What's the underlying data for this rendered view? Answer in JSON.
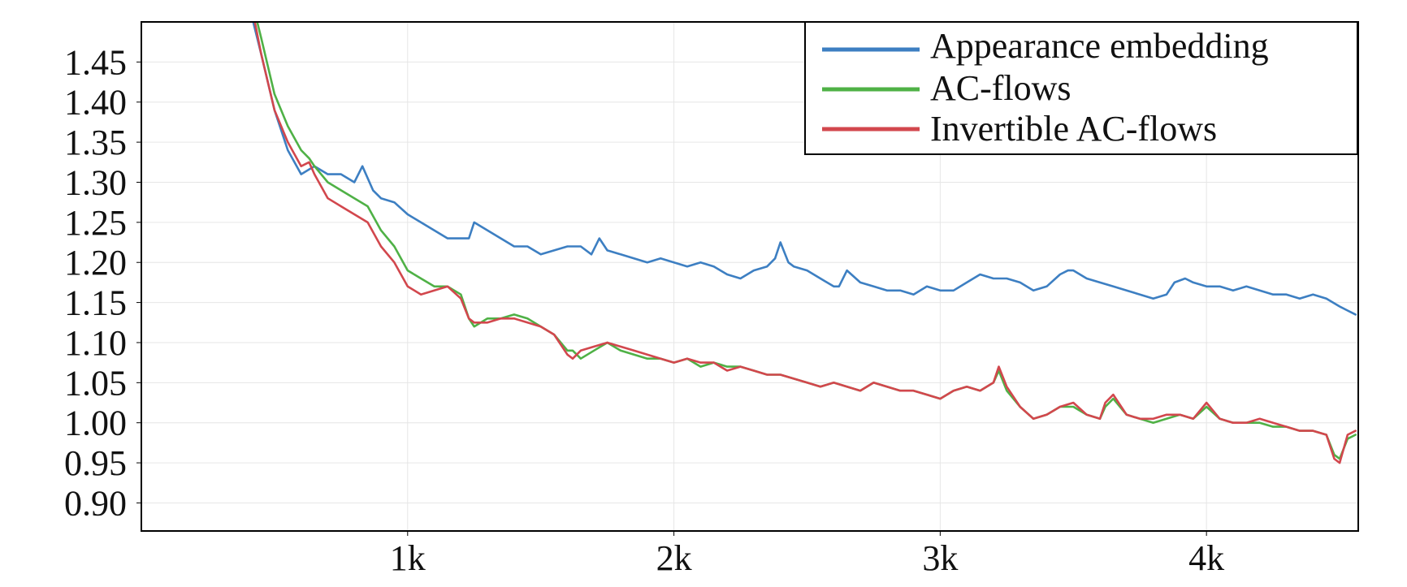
{
  "chart_data": {
    "type": "line",
    "title": "",
    "xlabel": "",
    "ylabel": "",
    "xlim": [
      0,
      4570
    ],
    "ylim": [
      0.865,
      1.5
    ],
    "grid": true,
    "legend_position": "top-right",
    "x_ticks": [
      {
        "value": 1000,
        "label": "1k"
      },
      {
        "value": 2000,
        "label": "2k"
      },
      {
        "value": 3000,
        "label": "3k"
      },
      {
        "value": 4000,
        "label": "4k"
      }
    ],
    "y_ticks": [
      {
        "value": 0.9,
        "label": "0.90"
      },
      {
        "value": 0.95,
        "label": "0.95"
      },
      {
        "value": 1.0,
        "label": "1.00"
      },
      {
        "value": 1.05,
        "label": "1.05"
      },
      {
        "value": 1.1,
        "label": "1.10"
      },
      {
        "value": 1.15,
        "label": "1.15"
      },
      {
        "value": 1.2,
        "label": "1.20"
      },
      {
        "value": 1.25,
        "label": "1.25"
      },
      {
        "value": 1.3,
        "label": "1.30"
      },
      {
        "value": 1.35,
        "label": "1.35"
      },
      {
        "value": 1.4,
        "label": "1.40"
      },
      {
        "value": 1.45,
        "label": "1.45"
      }
    ],
    "series": [
      {
        "name": "Appearance embedding",
        "color": "#3d7fc2",
        "x": [
          420,
          450,
          500,
          550,
          600,
          650,
          700,
          750,
          800,
          830,
          870,
          900,
          950,
          1000,
          1050,
          1100,
          1150,
          1200,
          1230,
          1250,
          1300,
          1350,
          1400,
          1450,
          1500,
          1550,
          1600,
          1650,
          1690,
          1720,
          1750,
          1800,
          1850,
          1900,
          1950,
          2000,
          2050,
          2100,
          2150,
          2200,
          2250,
          2300,
          2350,
          2380,
          2400,
          2430,
          2450,
          2500,
          2550,
          2600,
          2620,
          2650,
          2700,
          2750,
          2800,
          2850,
          2900,
          2950,
          3000,
          3050,
          3100,
          3150,
          3200,
          3250,
          3300,
          3350,
          3400,
          3450,
          3480,
          3500,
          3550,
          3600,
          3650,
          3700,
          3750,
          3800,
          3850,
          3880,
          3920,
          3950,
          4000,
          4050,
          4100,
          4150,
          4200,
          4250,
          4300,
          4350,
          4400,
          4450,
          4500,
          4530,
          4560
        ],
        "y": [
          1.5,
          1.46,
          1.39,
          1.34,
          1.31,
          1.32,
          1.31,
          1.31,
          1.3,
          1.32,
          1.29,
          1.28,
          1.275,
          1.26,
          1.25,
          1.24,
          1.23,
          1.23,
          1.23,
          1.25,
          1.24,
          1.23,
          1.22,
          1.22,
          1.21,
          1.215,
          1.22,
          1.22,
          1.21,
          1.23,
          1.215,
          1.21,
          1.205,
          1.2,
          1.205,
          1.2,
          1.195,
          1.2,
          1.195,
          1.185,
          1.18,
          1.19,
          1.195,
          1.205,
          1.225,
          1.2,
          1.195,
          1.19,
          1.18,
          1.17,
          1.17,
          1.19,
          1.175,
          1.17,
          1.165,
          1.165,
          1.16,
          1.17,
          1.165,
          1.165,
          1.175,
          1.185,
          1.18,
          1.18,
          1.175,
          1.165,
          1.17,
          1.185,
          1.19,
          1.19,
          1.18,
          1.175,
          1.17,
          1.165,
          1.16,
          1.155,
          1.16,
          1.175,
          1.18,
          1.175,
          1.17,
          1.17,
          1.165,
          1.17,
          1.165,
          1.16,
          1.16,
          1.155,
          1.16,
          1.155,
          1.145,
          1.14,
          1.135
        ]
      },
      {
        "name": "AC-flows",
        "color": "#4fb146",
        "x": [
          420,
          450,
          500,
          550,
          600,
          630,
          650,
          700,
          750,
          800,
          850,
          900,
          950,
          1000,
          1050,
          1100,
          1150,
          1200,
          1230,
          1250,
          1300,
          1350,
          1400,
          1450,
          1500,
          1550,
          1600,
          1620,
          1650,
          1700,
          1750,
          1800,
          1850,
          1900,
          1950,
          2000,
          2050,
          2100,
          2150,
          2200,
          2250,
          2300,
          2350,
          2400,
          2450,
          2500,
          2550,
          2600,
          2650,
          2700,
          2750,
          2800,
          2850,
          2900,
          2950,
          3000,
          3050,
          3100,
          3150,
          3200,
          3220,
          3250,
          3300,
          3350,
          3400,
          3450,
          3500,
          3550,
          3600,
          3620,
          3650,
          3700,
          3750,
          3800,
          3850,
          3900,
          3950,
          4000,
          4050,
          4100,
          4150,
          4200,
          4250,
          4300,
          4350,
          4400,
          4450,
          4480,
          4500,
          4530,
          4560
        ],
        "y": [
          1.52,
          1.48,
          1.41,
          1.37,
          1.34,
          1.33,
          1.32,
          1.3,
          1.29,
          1.28,
          1.27,
          1.24,
          1.22,
          1.19,
          1.18,
          1.17,
          1.17,
          1.16,
          1.13,
          1.12,
          1.13,
          1.13,
          1.135,
          1.13,
          1.12,
          1.11,
          1.09,
          1.09,
          1.08,
          1.09,
          1.1,
          1.09,
          1.085,
          1.08,
          1.08,
          1.075,
          1.08,
          1.07,
          1.075,
          1.07,
          1.07,
          1.065,
          1.06,
          1.06,
          1.055,
          1.05,
          1.045,
          1.05,
          1.045,
          1.04,
          1.05,
          1.045,
          1.04,
          1.04,
          1.035,
          1.03,
          1.04,
          1.045,
          1.04,
          1.05,
          1.065,
          1.04,
          1.02,
          1.005,
          1.01,
          1.02,
          1.02,
          1.01,
          1.005,
          1.02,
          1.03,
          1.01,
          1.005,
          1.0,
          1.005,
          1.01,
          1.005,
          1.02,
          1.005,
          1.0,
          1.0,
          1.0,
          0.995,
          0.995,
          0.99,
          0.99,
          0.985,
          0.96,
          0.955,
          0.98,
          0.985
        ]
      },
      {
        "name": "Invertible AC-flows",
        "color": "#d2474d",
        "x": [
          420,
          450,
          500,
          550,
          600,
          630,
          650,
          700,
          750,
          800,
          850,
          900,
          950,
          1000,
          1050,
          1100,
          1150,
          1200,
          1230,
          1250,
          1300,
          1350,
          1400,
          1450,
          1500,
          1550,
          1600,
          1620,
          1650,
          1700,
          1750,
          1800,
          1850,
          1900,
          1950,
          2000,
          2050,
          2100,
          2150,
          2200,
          2250,
          2300,
          2350,
          2400,
          2450,
          2500,
          2550,
          2600,
          2650,
          2700,
          2750,
          2800,
          2850,
          2900,
          2950,
          3000,
          3050,
          3100,
          3150,
          3200,
          3220,
          3250,
          3300,
          3350,
          3400,
          3450,
          3500,
          3550,
          3600,
          3620,
          3650,
          3700,
          3750,
          3800,
          3850,
          3900,
          3950,
          4000,
          4050,
          4100,
          4150,
          4200,
          4250,
          4300,
          4350,
          4400,
          4450,
          4480,
          4500,
          4530,
          4560
        ],
        "y": [
          1.51,
          1.46,
          1.39,
          1.35,
          1.32,
          1.325,
          1.31,
          1.28,
          1.27,
          1.26,
          1.25,
          1.22,
          1.2,
          1.17,
          1.16,
          1.165,
          1.17,
          1.155,
          1.13,
          1.125,
          1.125,
          1.13,
          1.13,
          1.125,
          1.12,
          1.11,
          1.085,
          1.08,
          1.09,
          1.095,
          1.1,
          1.095,
          1.09,
          1.085,
          1.08,
          1.075,
          1.08,
          1.075,
          1.075,
          1.065,
          1.07,
          1.065,
          1.06,
          1.06,
          1.055,
          1.05,
          1.045,
          1.05,
          1.045,
          1.04,
          1.05,
          1.045,
          1.04,
          1.04,
          1.035,
          1.03,
          1.04,
          1.045,
          1.04,
          1.05,
          1.07,
          1.045,
          1.02,
          1.005,
          1.01,
          1.02,
          1.025,
          1.01,
          1.005,
          1.025,
          1.035,
          1.01,
          1.005,
          1.005,
          1.01,
          1.01,
          1.005,
          1.025,
          1.005,
          1.0,
          1.0,
          1.005,
          1.0,
          0.995,
          0.99,
          0.99,
          0.985,
          0.955,
          0.95,
          0.985,
          0.99
        ]
      }
    ]
  }
}
